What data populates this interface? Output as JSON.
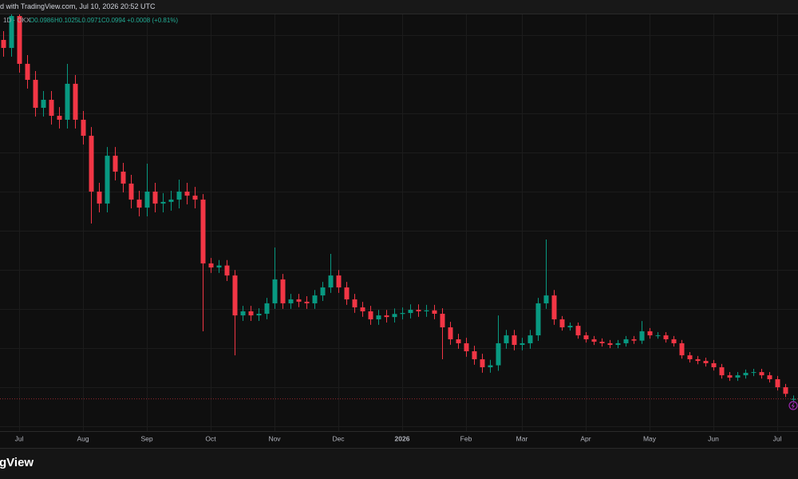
{
  "header": {
    "caption": "d with TradingView.com, Jul 10, 2026 20:52 UTC"
  },
  "footer": {
    "brand": "gView"
  },
  "chart_data": {
    "type": "candlestick",
    "legend": {
      "symbol": "1D · OKX",
      "open": "O0.0986",
      "high": "H0.1025",
      "low": "L0.0971",
      "close": "C0.0994",
      "change": "+0.0008 (+0.81%)"
    },
    "up_color": "#089981",
    "down_color": "#f23645",
    "ylim": [
      0.07,
      0.45
    ],
    "grid": true,
    "categories": [
      null,
      null,
      "Jul",
      null,
      null,
      null,
      null,
      null,
      null,
      null,
      "Aug",
      null,
      null,
      null,
      null,
      null,
      null,
      null,
      "Sep",
      null,
      null,
      null,
      null,
      null,
      null,
      null,
      "Oct",
      null,
      null,
      null,
      null,
      null,
      null,
      null,
      "Nov",
      null,
      null,
      null,
      null,
      null,
      null,
      null,
      "Dec",
      null,
      null,
      null,
      null,
      null,
      null,
      null,
      "2026",
      null,
      null,
      null,
      null,
      null,
      null,
      null,
      "Feb",
      null,
      null,
      null,
      null,
      null,
      null,
      "Mar",
      null,
      null,
      null,
      null,
      null,
      null,
      null,
      "Apr",
      null,
      null,
      null,
      null,
      null,
      null,
      null,
      "May",
      null,
      null,
      null,
      null,
      null,
      null,
      null,
      "Jun",
      null,
      null,
      null,
      null,
      null,
      null,
      null,
      "Jul",
      null,
      null
    ],
    "open": [
      0.4267,
      0.4194,
      0.4485,
      0.4049,
      0.3903,
      0.3648,
      0.3721,
      0.3575,
      0.3539,
      0.3867,
      0.3539,
      0.3393,
      0.2884,
      0.2775,
      0.3211,
      0.3066,
      0.2957,
      0.2811,
      0.2738,
      0.2884,
      0.2775,
      0.279,
      0.2811,
      0.2884,
      0.2847,
      0.2811,
      0.2229,
      0.2192,
      0.221,
      0.2119,
      0.1755,
      0.1792,
      0.1755,
      0.177,
      0.1865,
      0.2083,
      0.1865,
      0.1901,
      0.188,
      0.1865,
      0.1937,
      0.201,
      0.2119,
      0.201,
      0.1901,
      0.1828,
      0.1792,
      0.1719,
      0.1755,
      0.174,
      0.1768,
      0.1777,
      0.1806,
      0.1792,
      0.1801,
      0.177,
      0.1646,
      0.1537,
      0.1501,
      0.1428,
      0.1355,
      0.1282,
      0.13,
      0.1501,
      0.1573,
      0.1486,
      0.1501,
      0.1573,
      0.1865,
      0.1937,
      0.1719,
      0.1646,
      0.166,
      0.1573,
      0.1537,
      0.1515,
      0.1501,
      0.1486,
      0.1501,
      0.1537,
      0.1525,
      0.161,
      0.1573,
      0.1573,
      0.1537,
      0.1501,
      0.1391,
      0.1355,
      0.134,
      0.1319,
      0.1282,
      0.1209,
      0.1188,
      0.1209,
      0.1231,
      0.1238,
      0.1209,
      0.1173,
      0.11,
      0.0986
    ],
    "high": [
      0.4347,
      0.45,
      0.45,
      0.4129,
      0.3983,
      0.3801,
      0.3801,
      0.3655,
      0.4049,
      0.3947,
      0.3619,
      0.3473,
      0.2964,
      0.3291,
      0.3291,
      0.3146,
      0.3037,
      0.2891,
      0.3139,
      0.2964,
      0.287,
      0.2891,
      0.2993,
      0.2964,
      0.2927,
      0.2861,
      0.2279,
      0.226,
      0.226,
      0.2169,
      0.1842,
      0.1842,
      0.182,
      0.1915,
      0.2374,
      0.2133,
      0.1951,
      0.1951,
      0.193,
      0.1987,
      0.206,
      0.2316,
      0.2169,
      0.206,
      0.1951,
      0.1878,
      0.1842,
      0.1805,
      0.1805,
      0.1818,
      0.1827,
      0.1856,
      0.1856,
      0.1851,
      0.1851,
      0.182,
      0.1696,
      0.1587,
      0.1551,
      0.1478,
      0.1405,
      0.135,
      0.1755,
      0.1623,
      0.1623,
      0.1551,
      0.1623,
      0.1915,
      0.2447,
      0.1987,
      0.1749,
      0.169,
      0.169,
      0.1603,
      0.1567,
      0.1545,
      0.1531,
      0.1531,
      0.1567,
      0.1567,
      0.1704,
      0.164,
      0.1603,
      0.1603,
      0.1567,
      0.1531,
      0.1421,
      0.1385,
      0.137,
      0.1349,
      0.1312,
      0.1239,
      0.1239,
      0.1261,
      0.1268,
      0.1268,
      0.1239,
      0.1203,
      0.113,
      0.1025
    ],
    "low": [
      0.4114,
      0.4114,
      0.3969,
      0.3823,
      0.3568,
      0.3568,
      0.3495,
      0.3459,
      0.3459,
      0.3459,
      0.3313,
      0.2593,
      0.2695,
      0.2695,
      0.2986,
      0.2877,
      0.2731,
      0.2658,
      0.2658,
      0.2695,
      0.2695,
      0.271,
      0.2731,
      0.2767,
      0.2731,
      0.161,
      0.2142,
      0.2142,
      0.2069,
      0.1391,
      0.1705,
      0.1705,
      0.1705,
      0.172,
      0.1815,
      0.1815,
      0.1815,
      0.183,
      0.1815,
      0.1815,
      0.1887,
      0.196,
      0.196,
      0.1851,
      0.1778,
      0.1742,
      0.1669,
      0.1669,
      0.169,
      0.169,
      0.1718,
      0.1727,
      0.1742,
      0.1742,
      0.172,
      0.1355,
      0.1487,
      0.1451,
      0.1378,
      0.1305,
      0.1232,
      0.1232,
      0.125,
      0.1451,
      0.1436,
      0.1436,
      0.1451,
      0.1523,
      0.1815,
      0.1669,
      0.1616,
      0.1616,
      0.1543,
      0.1507,
      0.1485,
      0.1471,
      0.1456,
      0.1456,
      0.1471,
      0.1495,
      0.1495,
      0.1543,
      0.1543,
      0.1507,
      0.1471,
      0.1361,
      0.1325,
      0.131,
      0.1289,
      0.1252,
      0.1179,
      0.1158,
      0.1158,
      0.1179,
      0.1201,
      0.1179,
      0.1143,
      0.107,
      0.101,
      0.0971
    ],
    "close": [
      0.4194,
      0.4485,
      0.4049,
      0.3903,
      0.3648,
      0.3721,
      0.3575,
      0.3539,
      0.3867,
      0.3539,
      0.3393,
      0.2884,
      0.2775,
      0.3211,
      0.3066,
      0.2957,
      0.2811,
      0.2738,
      0.2884,
      0.2775,
      0.279,
      0.2811,
      0.2884,
      0.2847,
      0.2811,
      0.2229,
      0.2192,
      0.221,
      0.2119,
      0.1755,
      0.1792,
      0.1755,
      0.177,
      0.1865,
      0.2083,
      0.1865,
      0.1901,
      0.188,
      0.1865,
      0.1937,
      0.201,
      0.2119,
      0.201,
      0.1901,
      0.1828,
      0.1792,
      0.1719,
      0.1755,
      0.174,
      0.1768,
      0.1777,
      0.1806,
      0.1792,
      0.1801,
      0.177,
      0.1646,
      0.1537,
      0.1501,
      0.1428,
      0.1355,
      0.1282,
      0.13,
      0.1501,
      0.1573,
      0.1486,
      0.1501,
      0.1573,
      0.1865,
      0.1937,
      0.1719,
      0.1646,
      0.166,
      0.1573,
      0.1537,
      0.1515,
      0.1501,
      0.1486,
      0.1501,
      0.1537,
      0.1525,
      0.161,
      0.1573,
      0.1573,
      0.1537,
      0.1501,
      0.1391,
      0.1355,
      0.134,
      0.1319,
      0.1282,
      0.1209,
      0.1188,
      0.1209,
      0.1231,
      0.1238,
      0.1209,
      0.1173,
      0.11,
      0.104,
      0.0994
    ]
  }
}
